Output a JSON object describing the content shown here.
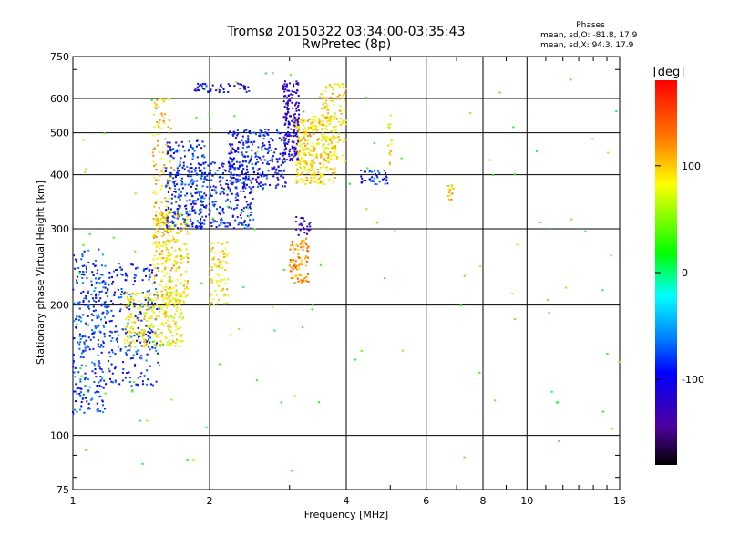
{
  "chart_data": {
    "type": "scatter",
    "title": "Tromsø 20150322 03:34:00-03:35:43",
    "subtitle": "RwPretec (8p)",
    "xlabel": "Frequency [MHz]",
    "ylabel": "Stationary phase Virtual Height [km]",
    "x_scale": "log",
    "y_scale": "log",
    "xlim": [
      1,
      16
    ],
    "ylim": [
      75,
      750
    ],
    "x_ticks": [
      1,
      2,
      4,
      6,
      8,
      10,
      16
    ],
    "x_tick_labels": [
      "1",
      "2",
      "4",
      "6",
      "8",
      "10",
      "16"
    ],
    "y_ticks": [
      75,
      100,
      200,
      300,
      400,
      500,
      600,
      750
    ],
    "y_tick_labels": [
      "75",
      "100",
      "200",
      "300",
      "400",
      "500",
      "600",
      "750"
    ],
    "grid": true,
    "legend": {
      "title": "Phases",
      "lines": [
        "mean, sd,O: -81.8, 17.9",
        "mean, sd,X:  94.3, 17.9"
      ]
    },
    "colorbar": {
      "label": "[deg]",
      "range": [
        -180,
        180
      ],
      "ticks": [
        100,
        0,
        -100
      ],
      "tick_labels": [
        "100",
        "0",
        "-100"
      ]
    },
    "clusters": [
      {
        "f": [
          1.0,
          1.18
        ],
        "h": [
          112,
          270
        ],
        "phase": -80,
        "n": 280
      },
      {
        "f": [
          1.18,
          1.55
        ],
        "h": [
          130,
          250
        ],
        "phase": -85,
        "n": 260
      },
      {
        "f": [
          1.3,
          1.75
        ],
        "h": [
          160,
          215
        ],
        "phase": 85,
        "n": 260
      },
      {
        "f": [
          1.5,
          1.8
        ],
        "h": [
          200,
          330
        ],
        "phase": 95,
        "n": 220
      },
      {
        "f": [
          1.5,
          1.65
        ],
        "h": [
          250,
          600
        ],
        "phase": 100,
        "n": 150
      },
      {
        "f": [
          1.6,
          1.95
        ],
        "h": [
          300,
          480
        ],
        "phase": -85,
        "n": 260
      },
      {
        "f": [
          1.9,
          2.5
        ],
        "h": [
          300,
          430
        ],
        "phase": -90,
        "n": 240
      },
      {
        "f": [
          2.2,
          2.95
        ],
        "h": [
          370,
          510
        ],
        "phase": -95,
        "n": 280
      },
      {
        "f": [
          1.85,
          2.45
        ],
        "h": [
          620,
          650
        ],
        "phase": -100,
        "n": 50
      },
      {
        "f": [
          2.9,
          3.15
        ],
        "h": [
          430,
          660
        ],
        "phase": -120,
        "n": 170
      },
      {
        "f": [
          3.1,
          3.8
        ],
        "h": [
          380,
          550
        ],
        "phase": 95,
        "n": 300
      },
      {
        "f": [
          3.5,
          4.0
        ],
        "h": [
          430,
          650
        ],
        "phase": 90,
        "n": 120
      },
      {
        "f": [
          3.0,
          3.3
        ],
        "h": [
          225,
          285
        ],
        "phase": 120,
        "n": 90
      },
      {
        "f": [
          3.1,
          3.35
        ],
        "h": [
          290,
          320
        ],
        "phase": -130,
        "n": 25
      },
      {
        "f": [
          2.0,
          2.2
        ],
        "h": [
          200,
          280
        ],
        "phase": 90,
        "n": 80
      },
      {
        "f": [
          4.3,
          4.95
        ],
        "h": [
          380,
          410
        ],
        "phase": -85,
        "n": 40
      },
      {
        "f": [
          4.95,
          5.05
        ],
        "h": [
          420,
          550
        ],
        "phase": 90,
        "n": 15
      },
      {
        "f": [
          6.7,
          6.9
        ],
        "h": [
          350,
          380
        ],
        "phase": 110,
        "n": 12
      },
      {
        "f": [
          1.0,
          16.0
        ],
        "h": [
          80,
          700
        ],
        "phase": 30,
        "n": 120
      }
    ]
  }
}
